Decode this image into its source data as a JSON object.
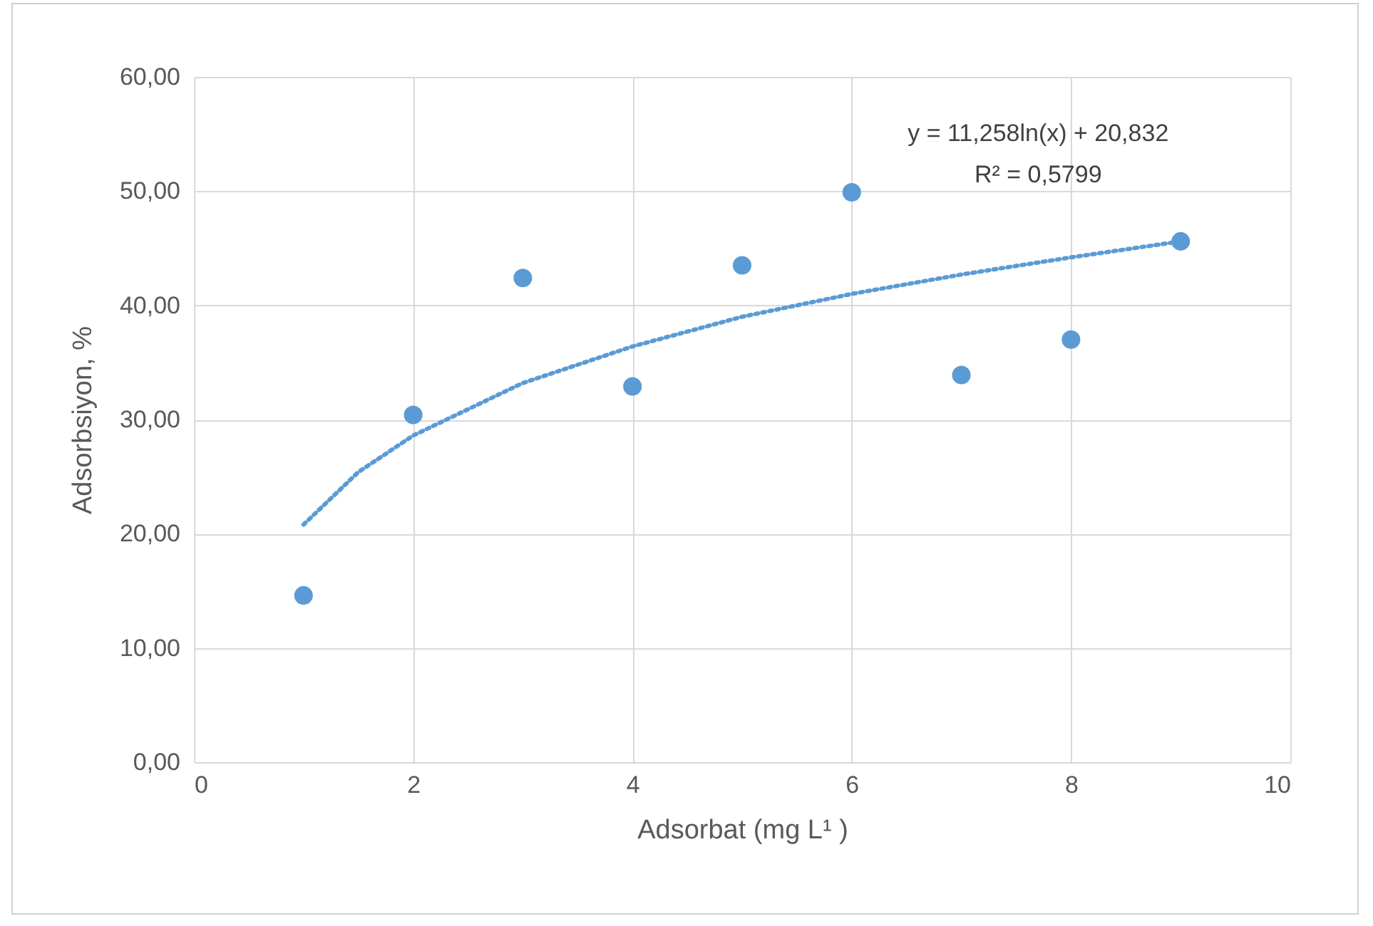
{
  "chart_data": {
    "type": "scatter",
    "xlabel": "Adsorbat (mg L¹ )",
    "ylabel": "Adsorbsiyon, %",
    "xlim": [
      0,
      10
    ],
    "xticks": [
      0,
      2,
      4,
      6,
      8,
      10
    ],
    "ylim": [
      0,
      60
    ],
    "yticks": [
      {
        "value": 0,
        "label": "0,00"
      },
      {
        "value": 10,
        "label": "10,00"
      },
      {
        "value": 20,
        "label": "20,00"
      },
      {
        "value": 30,
        "label": "30,00"
      },
      {
        "value": 40,
        "label": "40,00"
      },
      {
        "value": 50,
        "label": "50,00"
      },
      {
        "value": 60,
        "label": "60,00"
      }
    ],
    "grid": true,
    "series": [
      {
        "marker": "circle",
        "color": "#5b9bd5",
        "x": [
          1,
          2,
          3,
          4,
          5,
          6,
          7,
          8,
          9
        ],
        "values": [
          14.6,
          30.4,
          42.4,
          32.9,
          43.5,
          49.9,
          33.9,
          37.0,
          45.6
        ]
      },
      {
        "type": "line",
        "marker": "none",
        "line_style": "dotted",
        "color": "#5b9bd5",
        "x": [
          1,
          1.5,
          2,
          3,
          4,
          5,
          6,
          7,
          8,
          9
        ],
        "values": [
          20.8,
          25.4,
          28.6,
          33.2,
          36.4,
          39.0,
          41.0,
          42.7,
          44.2,
          45.6
        ]
      }
    ],
    "annotations": [
      "y = 11,258ln(x) + 20,832",
      "R² = 0,5799"
    ]
  }
}
